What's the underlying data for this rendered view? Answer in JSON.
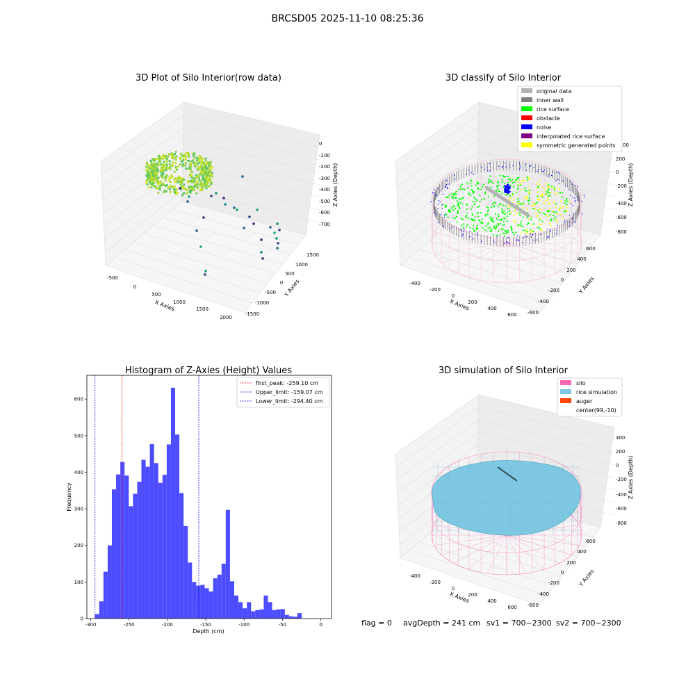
{
  "suptitle": "BRCSD05 2025-11-10 08:25:36",
  "colors": {
    "hist_bar": "#4d4dff",
    "first_peak": "#ff0000",
    "limit": "#0000ff",
    "original": "#b3b3b3",
    "inner_wall": "#808080",
    "rice_surface": "#00ff00",
    "obstacle": "#ff0000",
    "noise": "#0000ff",
    "interp": "#800080",
    "symmetric": "#ffff00",
    "silo": "#ff69b4",
    "rice_sim": "#7ec8e3",
    "auger": "#ff4500"
  },
  "panels": {
    "p1": {
      "title": "3D Plot of Silo Interior(row data)",
      "xlabel": "X Axies",
      "ylabel": "Y Axies",
      "zlabel": "Z Axies (Depth)",
      "x_ticks": [
        "-500",
        "0",
        "500",
        "1000",
        "1500",
        "2000"
      ],
      "y_ticks": [
        "1500",
        "1000",
        "500",
        "0",
        "-500",
        "-1000",
        "-1500"
      ],
      "z_ticks": [
        "0",
        "-100",
        "-200",
        "-300",
        "-400",
        "-500",
        "-600",
        "-700"
      ]
    },
    "p2": {
      "title": "3D classify of Silo Interior",
      "xlabel": "X Axies",
      "ylabel": "Y Axies",
      "zlabel": "Z Axies (Depth)",
      "x_ticks": [
        "-400",
        "-200",
        "0",
        "200",
        "400",
        "600"
      ],
      "y_ticks": [
        "600",
        "400",
        "200",
        "0",
        "-200",
        "-400",
        "-600"
      ],
      "z_ticks": [
        "200",
        "0",
        "-200",
        "-400",
        "-600",
        "-800"
      ],
      "z_top_partial": "00",
      "legend": [
        {
          "label": "original data",
          "color": "#b3b3b3"
        },
        {
          "label": "inner wall",
          "color": "#808080"
        },
        {
          "label": "rice surface",
          "color": "#00ff00"
        },
        {
          "label": "obstacle",
          "color": "#ff0000"
        },
        {
          "label": "noise",
          "color": "#0000ff"
        },
        {
          "label": "interpolated rice surface",
          "color": "#800080"
        },
        {
          "label": "symmetric generated points",
          "color": "#ffff00"
        }
      ]
    },
    "p4": {
      "title": "3D simulation of Silo Interior",
      "xlabel": "X Axies",
      "ylabel": "Y Axies",
      "zlabel": "Z Axies (Depth)",
      "x_ticks": [
        "-400",
        "-200",
        "0",
        "200",
        "400",
        "600"
      ],
      "y_ticks": [
        "600",
        "400",
        "200",
        "0",
        "-200",
        "-400",
        "-600"
      ],
      "z_ticks": [
        "400",
        "200",
        "0",
        "-200",
        "-400",
        "-600",
        "-800"
      ],
      "legend": [
        {
          "label": "silo",
          "color": "#ff69b4"
        },
        {
          "label": "rice simulation",
          "color": "#7ec8e3"
        },
        {
          "label": "auger",
          "color": "#ff4500"
        },
        {
          "label": "center(99,-10)",
          "color": ""
        }
      ]
    }
  },
  "status": {
    "flag": "flag = 0",
    "avg": "avgDepth = 241 cm",
    "sv1": "sv1 = 700~2300",
    "sv2": "sv2 = 700~2300"
  },
  "chart_data": {
    "type": "bar",
    "title": "Histogram of Z-Axies (Height) Values",
    "xlabel": "Depth (cm)",
    "ylabel": "Frequency",
    "xlim": [
      -305,
      14
    ],
    "ylim": [
      0,
      665
    ],
    "x_ticks": [
      -300,
      -250,
      -200,
      -150,
      -100,
      -50,
      0
    ],
    "y_ticks": [
      0,
      100,
      200,
      300,
      400,
      500,
      600
    ],
    "bin_start": -294.4,
    "bin_width": 5.5,
    "values": [
      12,
      47,
      128,
      200,
      353,
      394,
      428,
      391,
      307,
      341,
      374,
      434,
      415,
      477,
      425,
      371,
      393,
      476,
      631,
      503,
      343,
      253,
      153,
      100,
      90,
      92,
      83,
      74,
      110,
      120,
      150,
      297,
      102,
      63,
      45,
      28,
      45,
      20,
      23,
      25,
      63,
      45,
      23,
      25,
      26,
      10,
      6,
      5,
      15
    ],
    "vlines": [
      {
        "label": "first_peak: -259.10 cm",
        "x": -259.1,
        "color": "#ff0000"
      },
      {
        "label": "Upper_limit: -159.07 cm",
        "x": -159.07,
        "color": "#0000ff"
      },
      {
        "label": "Lower_limit: -294.40 cm",
        "x": -294.4,
        "color": "#0000ff"
      }
    ]
  }
}
